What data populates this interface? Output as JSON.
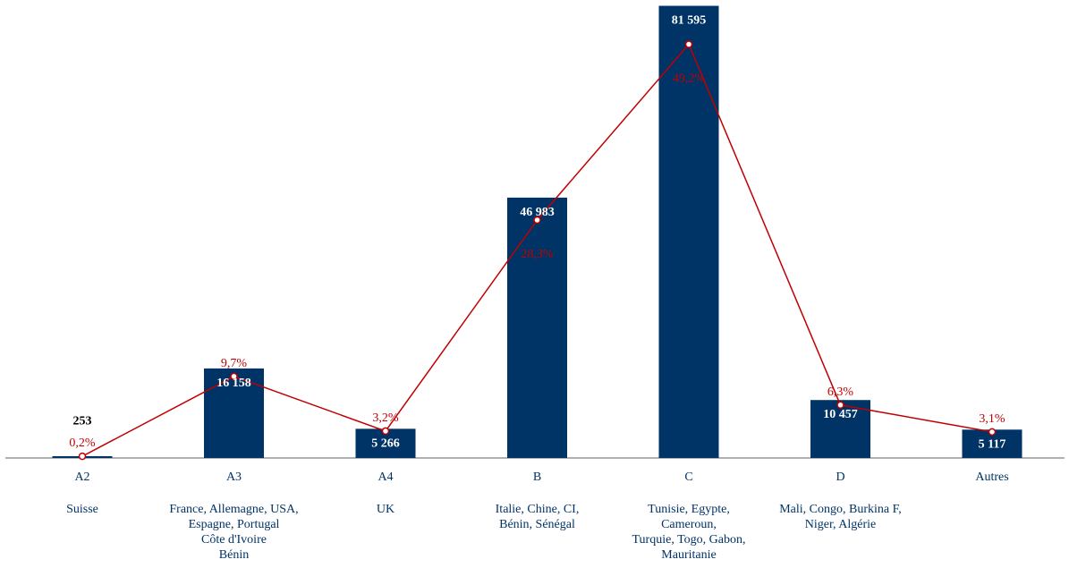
{
  "chart_data": {
    "type": "bar",
    "categories": [
      "A2",
      "A3",
      "A4",
      "B",
      "C",
      "D",
      "Autres"
    ],
    "subcategories": [
      [
        "Suisse"
      ],
      [
        "France, Allemagne, USA,",
        "Espagne, Portugal",
        "Côte d'Ivoire",
        "Bénin"
      ],
      [
        "UK"
      ],
      [
        "Italie, Chine, CI,",
        "Bénin, Sénégal"
      ],
      [
        "Tunisie, Egypte,",
        "Cameroun,",
        "Turquie, Togo, Gabon,",
        "Mauritanie"
      ],
      [
        "Mali, Congo, Burkina F,",
        "Niger, Algérie"
      ],
      []
    ],
    "series": [
      {
        "type": "bar",
        "values": [
          253,
          16158,
          5266,
          46983,
          81595,
          10457,
          5117
        ],
        "value_labels": [
          "253",
          "16 158",
          "5 266",
          "46 983",
          "81 595",
          "10 457",
          "5 117"
        ]
      },
      {
        "type": "line",
        "values": [
          0.2,
          9.7,
          3.2,
          28.3,
          49.2,
          6.3,
          3.1
        ],
        "value_labels": [
          "0,2%",
          "9,7%",
          "3,2%",
          "28,3%",
          "49,2%",
          "6,3%",
          "3,1%"
        ]
      }
    ],
    "ylim": [
      0,
      82000
    ],
    "ylim_percent": [
      0,
      50
    ],
    "grid": false,
    "colors": {
      "bar": "#003366",
      "line": "#C00000",
      "axis": "#808080",
      "label": "#003366"
    }
  }
}
